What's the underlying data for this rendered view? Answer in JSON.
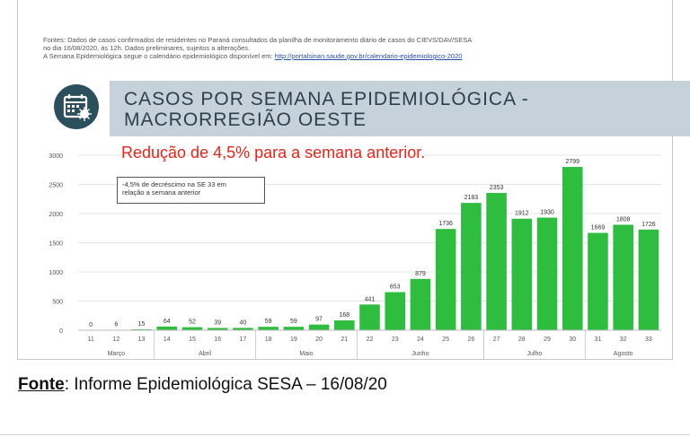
{
  "sources": {
    "line1": "Fontes: Dados de casos confirmados de residentes no Paraná consultados da planilha de monitoramento diário de casos do CIEVS/DAV/SESA",
    "line2": "no dia 16/08/2020, às 12h. Dados preliminares, sujeitos a alterações.",
    "line3_prefix": "A Semana Epidemiológica  segue o calendário epidemiológico disponível em: ",
    "line3_link": "http://portalsinan.saude.gov.br/calendario-epidemiologico-2020"
  },
  "header": {
    "title_line1": "CASOS POR SEMANA EPIDEMIOLÓGICA -",
    "title_line2": "MACRORREGIÃO OESTE",
    "icon": "calendar-virus-icon"
  },
  "reduction_text": "Redução de 4,5% para a semana anterior.",
  "annotation": {
    "line1": "-4,5% de decréscimo na SE 33 em",
    "line2": "relação a semana anterior"
  },
  "chart_data": {
    "type": "bar",
    "categories": [
      "11",
      "12",
      "13",
      "14",
      "15",
      "16",
      "17",
      "18",
      "19",
      "20",
      "21",
      "22",
      "23",
      "24",
      "25",
      "26",
      "27",
      "28",
      "29",
      "30",
      "31",
      "32",
      "33"
    ],
    "values": [
      0,
      6,
      15,
      64,
      52,
      39,
      40,
      59,
      59,
      97,
      168,
      441,
      653,
      879,
      1736,
      2183,
      2353,
      1912,
      1930,
      2799,
      1669,
      1808,
      1726
    ],
    "data_labels": [
      "0",
      "6",
      "15",
      "64",
      "52",
      "39",
      "40",
      "59",
      "59",
      "97",
      "168",
      "441",
      "653",
      "879",
      "1736",
      "2183",
      "2353",
      "1912",
      "1930",
      "2799",
      "1669",
      "1808",
      "1726"
    ],
    "y_ticks": [
      "0",
      "500",
      "1000",
      "1500",
      "2000",
      "2500",
      "3000"
    ],
    "ylim": [
      0,
      3000
    ],
    "months": [
      {
        "label": "Março",
        "start": 0,
        "end": 2
      },
      {
        "label": "Abril",
        "start": 3,
        "end": 6
      },
      {
        "label": "Maio",
        "start": 7,
        "end": 10
      },
      {
        "label": "Junho",
        "start": 11,
        "end": 15
      },
      {
        "label": "Julho",
        "start": 16,
        "end": 19
      },
      {
        "label": "Agosto",
        "start": 20,
        "end": 22
      }
    ],
    "bar_color": "#2ebd3f",
    "grid": true
  },
  "footer": {
    "label": "Fonte",
    "text": ": Informe Epidemiológica SESA – 16/08/20"
  }
}
